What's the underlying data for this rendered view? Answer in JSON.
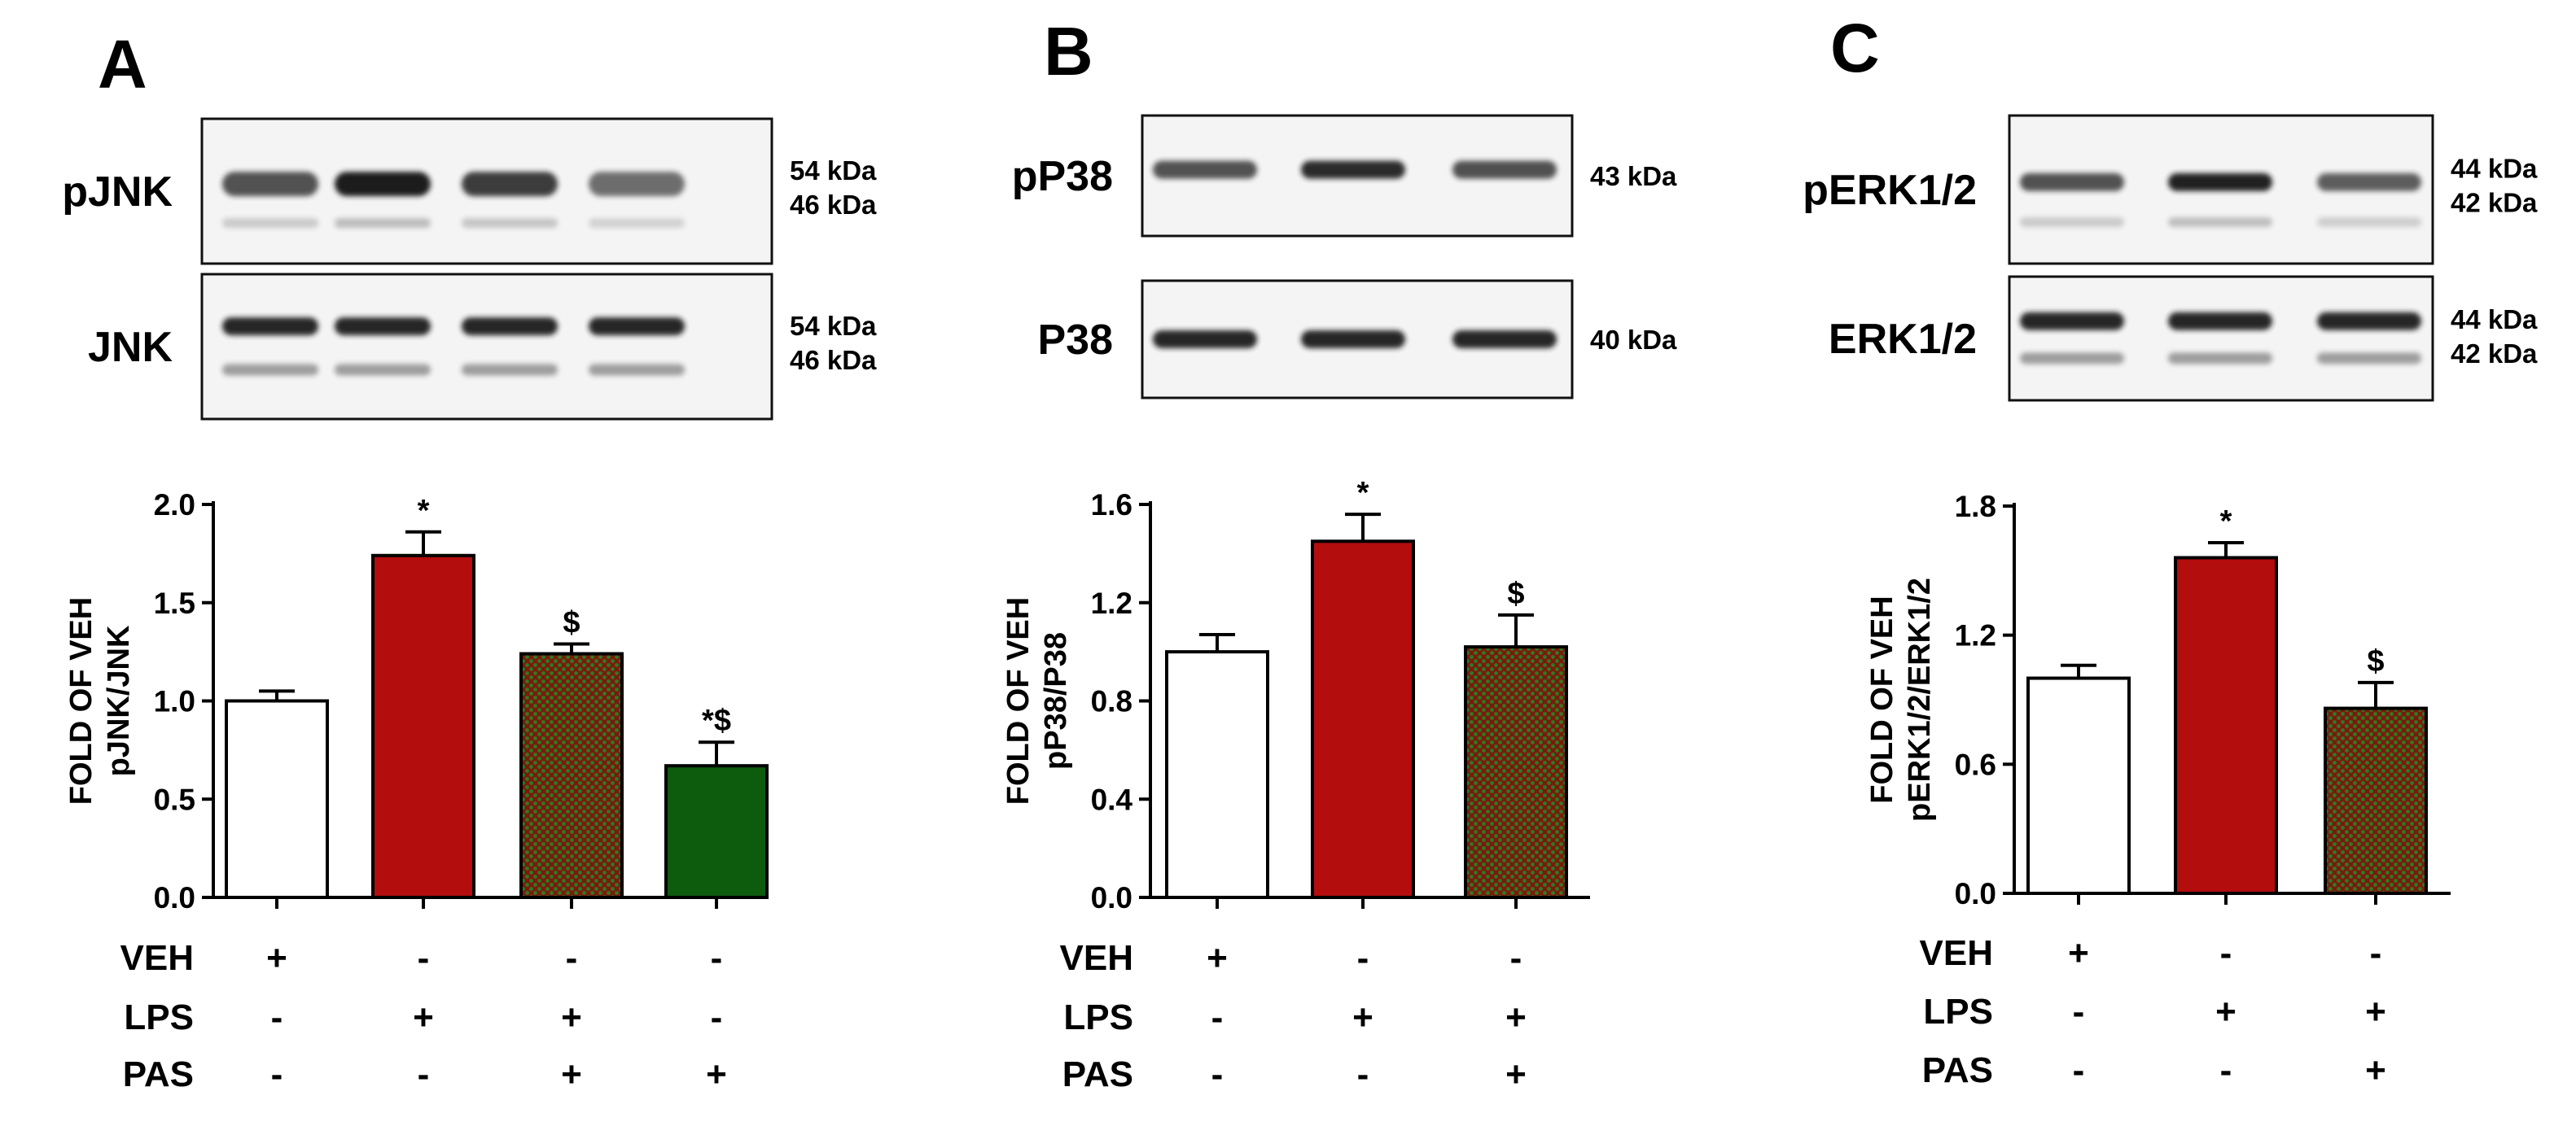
{
  "chart_data": [
    {
      "type": "bar",
      "panel": "A",
      "blot_top": {
        "label": "pJNK",
        "kda": [
          "54 kDa",
          "46 kDa"
        ]
      },
      "blot_bottom": {
        "label": "JNK",
        "kda": [
          "54 kDa",
          "46 kDa"
        ]
      },
      "ylabel_lines": [
        "FOLD OF VEH",
        "pJNK/JNK"
      ],
      "ylim": [
        0,
        2.0
      ],
      "yticks": [
        "0.0",
        "0.5",
        "1.0",
        "1.5",
        "2.0"
      ],
      "values": [
        1.0,
        1.74,
        1.24,
        0.67
      ],
      "errors": [
        0.05,
        0.12,
        0.05,
        0.12
      ],
      "annotations": [
        "",
        "*",
        "$",
        "*$"
      ],
      "fills": [
        "white",
        "red",
        "pattern",
        "green"
      ],
      "conditions": [
        {
          "name": "VEH",
          "signs": [
            "+",
            "-",
            "-",
            "-"
          ]
        },
        {
          "name": "LPS",
          "signs": [
            "-",
            "+",
            "+",
            "-"
          ]
        },
        {
          "name": "PAS",
          "signs": [
            "-",
            "-",
            "+",
            "+"
          ]
        }
      ]
    },
    {
      "type": "bar",
      "panel": "B",
      "blot_top": {
        "label": "pP38",
        "kda": [
          "43 kDa"
        ]
      },
      "blot_bottom": {
        "label": "P38",
        "kda": [
          "40 kDa"
        ]
      },
      "ylabel_lines": [
        "FOLD OF VEH",
        "pP38/P38"
      ],
      "ylim": [
        0,
        1.6
      ],
      "yticks": [
        "0.0",
        "0.4",
        "0.8",
        "1.2",
        "1.6"
      ],
      "values": [
        1.0,
        1.45,
        1.02
      ],
      "errors": [
        0.07,
        0.11,
        0.13
      ],
      "annotations": [
        "",
        "*",
        "$"
      ],
      "fills": [
        "white",
        "red",
        "pattern"
      ],
      "conditions": [
        {
          "name": "VEH",
          "signs": [
            "+",
            "-",
            "-"
          ]
        },
        {
          "name": "LPS",
          "signs": [
            "-",
            "+",
            "+"
          ]
        },
        {
          "name": "PAS",
          "signs": [
            "-",
            "-",
            "+"
          ]
        }
      ]
    },
    {
      "type": "bar",
      "panel": "C",
      "blot_top": {
        "label": "pERK1/2",
        "kda": [
          "44 kDa",
          "42 kDa"
        ]
      },
      "blot_bottom": {
        "label": "ERK1/2",
        "kda": [
          "44 kDa",
          "42 kDa"
        ]
      },
      "ylabel_lines": [
        "FOLD OF VEH",
        "pERK1/2/ERK1/2"
      ],
      "ylim": [
        0,
        1.8
      ],
      "yticks": [
        "0.0",
        "0.6",
        "1.2",
        "1.8"
      ],
      "values": [
        1.0,
        1.56,
        0.86
      ],
      "errors": [
        0.06,
        0.07,
        0.12
      ],
      "annotations": [
        "",
        "*",
        "$"
      ],
      "fills": [
        "white",
        "red",
        "pattern"
      ],
      "conditions": [
        {
          "name": "VEH",
          "signs": [
            "+",
            "-",
            "-"
          ]
        },
        {
          "name": "LPS",
          "signs": [
            "-",
            "+",
            "+"
          ]
        },
        {
          "name": "PAS",
          "signs": [
            "-",
            "-",
            "+"
          ]
        }
      ]
    }
  ],
  "colors": {
    "red": "#b30d0d",
    "green": "#0d5c0d",
    "pattern_base": "#7a1a0f",
    "pattern_dot": "#2f7a1e",
    "white": "#ffffff",
    "band": "#1a1a1a"
  }
}
